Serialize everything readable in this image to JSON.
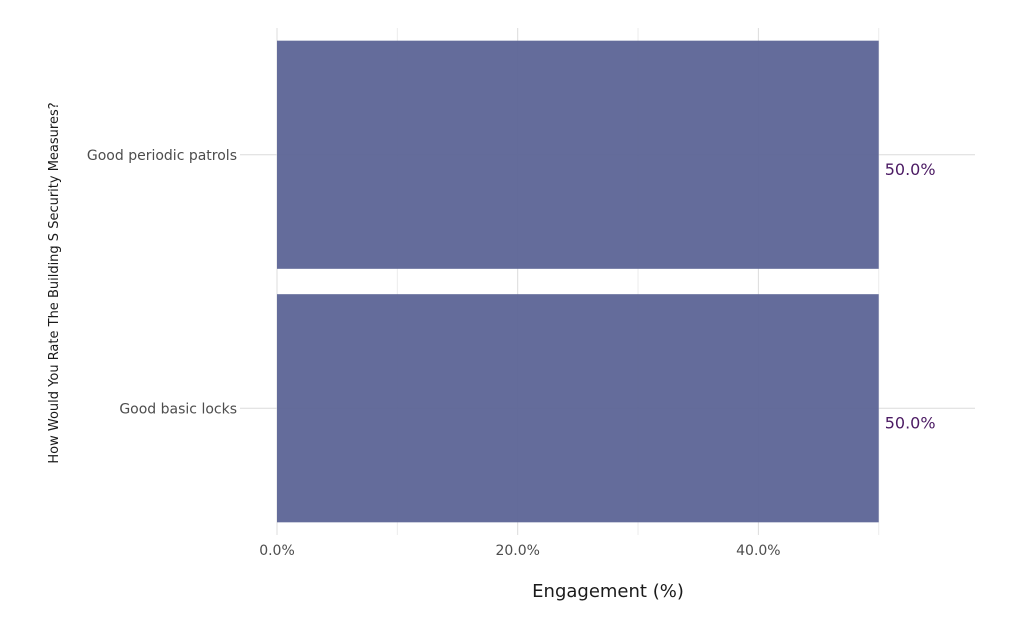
{
  "chart_data": {
    "type": "bar",
    "orientation": "horizontal",
    "categories": [
      "Good periodic patrols",
      "Good basic locks"
    ],
    "values": [
      50.0,
      50.0
    ],
    "data_labels": [
      "50.0%",
      "50.0%"
    ],
    "xlabel": "Engagement (%)",
    "ylabel": "How Would You Rate The Building S Security Measures?",
    "xlim": [
      0,
      58
    ],
    "x_ticks": [
      0,
      20,
      40
    ],
    "x_tick_labels": [
      "0.0%",
      "20.0%",
      "40.0%"
    ],
    "grid": true,
    "colors": {
      "bar": "#5c6496",
      "label": "#4b1a63"
    }
  }
}
